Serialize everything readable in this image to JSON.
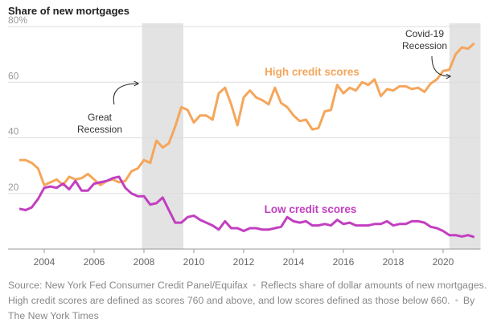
{
  "chart_data": {
    "type": "line",
    "title": "Share of new mortgages",
    "x": [
      2003,
      2003.25,
      2003.5,
      2003.75,
      2004,
      2004.25,
      2004.5,
      2004.75,
      2005,
      2005.25,
      2005.5,
      2005.75,
      2006,
      2006.25,
      2006.5,
      2006.75,
      2007,
      2007.25,
      2007.5,
      2007.75,
      2008,
      2008.25,
      2008.5,
      2008.75,
      2009,
      2009.25,
      2009.5,
      2009.75,
      2010,
      2010.25,
      2010.5,
      2010.75,
      2011,
      2011.25,
      2011.5,
      2011.75,
      2012,
      2012.25,
      2012.5,
      2012.75,
      2013,
      2013.25,
      2013.5,
      2013.75,
      2014,
      2014.25,
      2014.5,
      2014.75,
      2015,
      2015.25,
      2015.5,
      2015.75,
      2016,
      2016.25,
      2016.5,
      2016.75,
      2017,
      2017.25,
      2017.5,
      2017.75,
      2018,
      2018.25,
      2018.5,
      2018.75,
      2019,
      2019.25,
      2019.5,
      2019.75,
      2020,
      2020.25,
      2020.5,
      2020.75,
      2021,
      2021.25
    ],
    "series": [
      {
        "name": "High credit scores",
        "color": "#f5a65b",
        "values": [
          32,
          32,
          31,
          29,
          23,
          24,
          25,
          23,
          26,
          25,
          25.5,
          27,
          25,
          23,
          24.5,
          25,
          24,
          24.5,
          28,
          29,
          32,
          31,
          39,
          36.5,
          38,
          44,
          51,
          50,
          45.5,
          48,
          48,
          46.5,
          56,
          58,
          52,
          44.5,
          54.5,
          57,
          54.5,
          53.5,
          52,
          58,
          52.5,
          51,
          48,
          46,
          46.5,
          43,
          43.5,
          49.5,
          50,
          59,
          56,
          58,
          57,
          60,
          59,
          61,
          55,
          57.5,
          57,
          58.5,
          58.5,
          57.5,
          58,
          56.5,
          59.5,
          61,
          64,
          64.5,
          70,
          72.5,
          72,
          74
        ]
      },
      {
        "name": "Low credit scores",
        "color": "#c23fc0",
        "values": [
          14.5,
          14,
          15,
          18,
          22,
          22.5,
          22,
          23.5,
          21.5,
          24.5,
          21,
          21,
          23.5,
          24,
          24.5,
          25.5,
          26,
          22,
          20,
          19,
          19,
          16,
          16.5,
          18.5,
          14,
          9.5,
          9.5,
          11.5,
          12,
          10.5,
          9.5,
          8.5,
          7,
          10,
          7.5,
          7.5,
          6.5,
          7.5,
          7.5,
          7,
          7,
          7.5,
          8,
          11.5,
          10,
          9.5,
          10,
          8.5,
          8.5,
          9,
          8.5,
          10.5,
          9,
          9.5,
          8.5,
          8.5,
          8.5,
          9,
          9,
          10,
          8.5,
          9,
          9,
          10,
          10,
          9.5,
          8,
          7.5,
          6.5,
          5,
          5,
          4.5,
          5,
          4.3
        ]
      }
    ],
    "recessions": [
      {
        "label": [
          "Great",
          "Recession"
        ],
        "start": 2007.92,
        "end": 2009.58
      },
      {
        "label": [
          "Covid-19",
          "Recession"
        ],
        "start": 2020.25,
        "end": 2021.5
      }
    ],
    "xlim": [
      2003,
      2021.5
    ],
    "xticks": [
      2004,
      2006,
      2008,
      2010,
      2012,
      2014,
      2016,
      2018,
      2020
    ],
    "ylim": [
      0,
      80
    ],
    "yticks": [
      20,
      40,
      60,
      {
        "value": 80,
        "label": "80%"
      }
    ],
    "grid": true,
    "source": "Source: New York Fed Consumer Credit Panel/Equifax",
    "note": "Reflects share of dollar amounts of new mortgages. High credit scores are defined as scores 760 and above, and low scores defined as those below 660.",
    "credit": "By The New York Times"
  }
}
